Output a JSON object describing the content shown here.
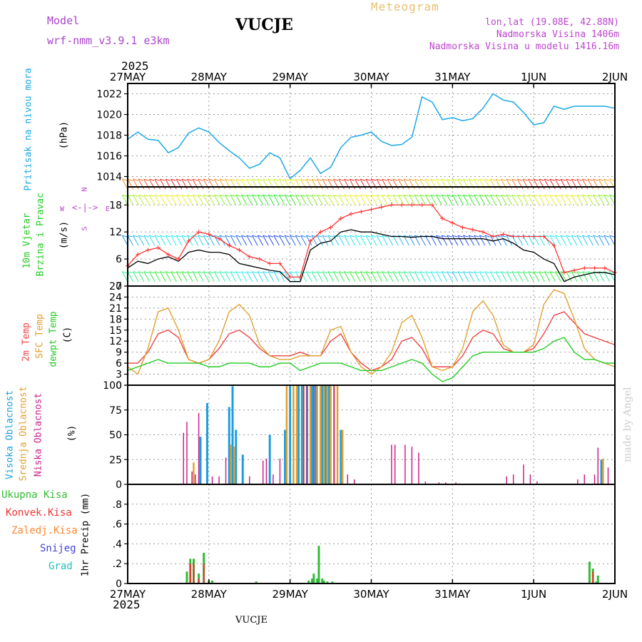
{
  "header": {
    "model_label": "Model",
    "model_name": "wrf-nmm_v3.9.1 e3km",
    "station": "VUCJE",
    "chart_title": "Meteogram",
    "lonlat": "lon,lat (19.08E, 42.88N)",
    "altitude": "Nadmorska Visina 1406m",
    "model_altitude": "Nadmorska Visina u modelu 1416.16m",
    "year_top": "2025",
    "year_bottom": "2025",
    "footer_station": "VUCJE",
    "watermark": "made by Angel"
  },
  "axis_dates": [
    "27MAY",
    "28MAY",
    "29MAY",
    "30MAY",
    "31MAY",
    "1JUN",
    "2JUN"
  ],
  "legend": {
    "pressure": "Pritisak na nivou mora",
    "pressure_unit": "(hPa)",
    "wind1": "10m Vjetar",
    "wind2": "Brzina i Pravac",
    "wind_unit": "(m/s)",
    "compass_n": "N",
    "compass_w": "W",
    "compass_e": "E",
    "compass_s": "S",
    "temp_2m": "2m Temp",
    "temp_sfc": "SFC Temp",
    "temp_dew": "dewpt Temp",
    "temp_unit": "(C)",
    "cloud_high": "Visoka Oblacnost",
    "cloud_mid": "Srednja Oblacnost",
    "cloud_low": "Niska Oblacnost",
    "cloud_unit": "(%)",
    "precip_total": "Ukupna Kisa",
    "precip_conv": "Konvek.Kisa",
    "precip_frozen": "Zaledj.Kisa",
    "precip_snow": "Snijeg",
    "precip_grad": "Grad",
    "precip_unit": "1hr Precip (mm)"
  },
  "colors": {
    "pressure": "#1ba8e6",
    "wind_obs": "#000000",
    "gust": "#ff3333",
    "temp_2m": "#ee4444",
    "temp_sfc": "#e0a030",
    "temp_dew": "#22cc22",
    "cloud_high": "#1e9ee0",
    "cloud_mid": "#e0a030",
    "cloud_low": "#cc2288",
    "precip_total": "#33bb33",
    "precip_conv": "#ee3333",
    "precip_frozen": "#ff8833",
    "precip_snow": "#4444dd",
    "precip_grad": "#22bbbb",
    "title": "#e8c070",
    "info": "#bb44cc",
    "model": "#aa44cc"
  },
  "chart_data": [
    {
      "type": "line",
      "name": "pressure",
      "x_unit": "hours since 27MAY 00h",
      "ylim": [
        1013,
        1023
      ],
      "yticks": [
        1014,
        1016,
        1018,
        1020,
        1022
      ],
      "grid": true,
      "x": [
        0,
        3,
        6,
        9,
        12,
        15,
        18,
        21,
        24,
        27,
        30,
        33,
        36,
        39,
        42,
        45,
        48,
        51,
        54,
        57,
        60,
        63,
        66,
        69,
        72,
        75,
        78,
        81,
        84,
        87,
        90,
        93,
        96,
        99,
        102,
        105,
        108,
        111,
        114,
        117,
        120,
        123,
        126,
        129,
        132,
        135,
        138,
        141,
        144
      ],
      "values": [
        1017.6,
        1018.3,
        1017.6,
        1017.5,
        1016.3,
        1016.8,
        1018.2,
        1018.7,
        1018.3,
        1017.3,
        1016.5,
        1015.8,
        1014.8,
        1015.2,
        1016.3,
        1015.8,
        1013.8,
        1014.6,
        1015.8,
        1014.3,
        1014.9,
        1016.8,
        1017.8,
        1018.0,
        1018.3,
        1017.4,
        1017.0,
        1017.1,
        1017.8,
        1021.7,
        1021.2,
        1019.5,
        1019.7,
        1019.4,
        1019.6,
        1020.6,
        1022.0,
        1021.4,
        1021.2,
        1020.2,
        1019.0,
        1019.2,
        1020.8,
        1020.5,
        1020.8,
        1020.8,
        1020.8,
        1020.8,
        1020.6
      ]
    },
    {
      "type": "line",
      "name": "wind",
      "x_unit": "hours since 27MAY 00h",
      "ylim": [
        0,
        22
      ],
      "yticks": [
        0,
        6,
        12,
        18
      ],
      "grid": true,
      "x": [
        0,
        3,
        6,
        9,
        12,
        15,
        18,
        21,
        24,
        27,
        30,
        33,
        36,
        39,
        42,
        45,
        48,
        51,
        54,
        57,
        60,
        63,
        66,
        69,
        72,
        75,
        78,
        81,
        84,
        87,
        90,
        93,
        96,
        99,
        102,
        105,
        108,
        111,
        114,
        117,
        120,
        123,
        126,
        129,
        132,
        135,
        138,
        141,
        144
      ],
      "series": [
        {
          "name": "10m wind speed",
          "values": [
            4,
            5.5,
            5,
            6,
            6.5,
            5.5,
            7.5,
            8,
            7.5,
            7.5,
            7,
            5,
            4.5,
            4,
            3.5,
            3.2,
            1,
            1,
            8,
            9.5,
            10,
            12,
            12.5,
            12,
            12,
            11.5,
            11,
            11,
            10.8,
            11,
            11,
            10.5,
            10.5,
            10.5,
            10.5,
            10.5,
            10,
            10.5,
            9.5,
            8,
            7.5,
            6,
            5,
            1,
            2,
            2.5,
            3,
            3,
            2.5
          ]
        },
        {
          "name": "gust",
          "values": [
            4.5,
            7,
            8,
            8.5,
            7,
            6,
            10,
            12,
            11.5,
            10.5,
            9,
            8,
            6.5,
            6,
            5,
            5,
            2,
            2,
            10,
            12,
            13,
            15,
            16,
            16.5,
            17,
            17.5,
            18,
            18,
            18,
            18,
            18,
            15,
            14,
            13,
            12.5,
            12,
            11,
            11.5,
            11,
            11,
            11,
            11,
            9,
            3,
            3.5,
            4,
            4,
            4,
            3
          ]
        }
      ],
      "barb_rows": [
        {
          "level": 1,
          "color_range": "cyan-green"
        },
        {
          "level": 9,
          "color_range": "blue-cyan"
        },
        {
          "level": 18,
          "color_range": "green-yellow"
        },
        {
          "level": 21.5,
          "color_range": "yellow-red"
        }
      ]
    },
    {
      "type": "line",
      "name": "temperature",
      "x_unit": "hours since 27MAY 00h",
      "ylim": [
        0,
        27
      ],
      "yticks": [
        0,
        3,
        6,
        9,
        12,
        15,
        18,
        21,
        24,
        27
      ],
      "grid": true,
      "x": [
        0,
        3,
        6,
        9,
        12,
        15,
        18,
        21,
        24,
        27,
        30,
        33,
        36,
        39,
        42,
        45,
        48,
        51,
        54,
        57,
        60,
        63,
        66,
        69,
        72,
        75,
        78,
        81,
        84,
        87,
        90,
        93,
        96,
        99,
        102,
        105,
        108,
        111,
        114,
        117,
        120,
        123,
        126,
        129,
        132,
        135,
        138,
        141,
        144
      ],
      "series": [
        {
          "name": "2m Temp",
          "values": [
            6,
            6,
            9,
            14,
            15,
            13,
            7,
            6,
            7,
            10,
            14,
            15,
            13,
            10,
            8,
            8,
            8,
            9,
            8,
            8,
            12,
            14,
            9,
            6,
            4,
            5,
            7,
            12,
            13,
            10,
            5,
            5,
            5,
            8,
            13,
            15,
            14,
            10,
            9,
            9,
            10,
            14,
            19,
            20,
            17,
            14,
            13,
            12,
            11
          ]
        },
        {
          "name": "SFC Temp",
          "values": [
            5,
            3,
            10,
            20,
            21,
            15,
            7,
            6,
            7,
            12,
            20,
            22,
            19,
            11,
            8,
            7,
            7,
            8,
            8,
            8,
            15,
            16,
            9,
            5,
            3,
            5,
            9,
            17,
            19,
            13,
            5,
            4,
            5,
            10,
            20,
            23,
            19,
            11,
            9,
            9,
            11,
            22,
            26,
            25,
            18,
            10,
            7,
            6,
            5
          ]
        },
        {
          "name": "dewpt Temp",
          "values": [
            4,
            5,
            6,
            7,
            6,
            6,
            6,
            6,
            5,
            5,
            6,
            6,
            6,
            5,
            5,
            6,
            6,
            4,
            5,
            6,
            6,
            6,
            5,
            4,
            4,
            4,
            5,
            6,
            7,
            6,
            3,
            1,
            2,
            5,
            8,
            9,
            9,
            9,
            9,
            9,
            9,
            10,
            12,
            13,
            9,
            7,
            7,
            6,
            6
          ]
        }
      ]
    },
    {
      "type": "bar",
      "name": "cloud",
      "x_unit": "hours since 27MAY 00h",
      "ylim": [
        0,
        100
      ],
      "yticks": [
        0,
        25,
        50,
        75,
        100
      ],
      "grid": true,
      "series": [
        {
          "name": "Visoka Oblacnost",
          "x": [
            21.5,
            23.5,
            30,
            31,
            32,
            34,
            42,
            46.5,
            48,
            50.5,
            51.5,
            53,
            54.5,
            55.5,
            57.5,
            58.5,
            59.5,
            63,
            140
          ],
          "values": [
            48,
            82,
            78,
            99,
            55,
            30,
            50,
            55,
            100,
            100,
            100,
            100,
            100,
            100,
            100,
            100,
            100,
            55,
            25
          ]
        },
        {
          "name": "Srednja Oblacnost",
          "x": [
            19.5,
            30.5,
            31.5,
            47,
            49,
            50,
            52,
            54,
            56,
            57,
            58,
            59,
            60,
            61,
            62,
            63.5,
            140.5
          ],
          "values": [
            22,
            40,
            38,
            100,
            100,
            100,
            100,
            100,
            100,
            100,
            100,
            100,
            100,
            100,
            100,
            55,
            26
          ]
        },
        {
          "name": "Niska Oblacnost",
          "x": [
            16.5,
            17.5,
            19,
            20,
            21,
            25,
            27,
            29,
            36,
            40,
            41,
            43,
            45,
            52,
            53,
            55,
            61,
            65,
            67,
            78,
            79,
            82,
            84,
            86,
            88,
            92,
            94,
            97,
            112,
            114,
            117,
            119,
            121,
            133,
            135,
            138,
            139,
            142
          ],
          "values": [
            52,
            63,
            13,
            10,
            72,
            8,
            8,
            27,
            8,
            24,
            26,
            10,
            26,
            100,
            100,
            100,
            100,
            10,
            5,
            40,
            40,
            40,
            38,
            32,
            3,
            2,
            2,
            2,
            8,
            10,
            20,
            10,
            3,
            5,
            10,
            10,
            37,
            17
          ]
        }
      ]
    },
    {
      "type": "bar",
      "name": "precipitation",
      "x_unit": "hours since 27MAY 00h",
      "ylim": [
        0,
        1.0
      ],
      "yticks": [
        0,
        0.2,
        0.4,
        0.6,
        0.8
      ],
      "grid": true,
      "series": [
        {
          "name": "Ukupna Kisa",
          "x": [
            17.5,
            18.5,
            19.5,
            21,
            22.5,
            24,
            25,
            38,
            53.5,
            54.5,
            55,
            56,
            56.5,
            57.5,
            58,
            59,
            60.5,
            136.5,
            137.5,
            138.5,
            139
          ],
          "values": [
            0.12,
            0.25,
            0.25,
            0.1,
            0.31,
            0.03,
            0.03,
            0.02,
            0.03,
            0.05,
            0.1,
            0.05,
            0.38,
            0.05,
            0.03,
            0.02,
            0.02,
            0.22,
            0.15,
            0.02,
            0.08
          ]
        },
        {
          "name": "Konvek.Kisa",
          "x": [
            18.5,
            19.5,
            21,
            22.5,
            137.5
          ],
          "values": [
            0.2,
            0.2,
            0.05,
            0.2,
            0.12
          ]
        }
      ]
    }
  ]
}
